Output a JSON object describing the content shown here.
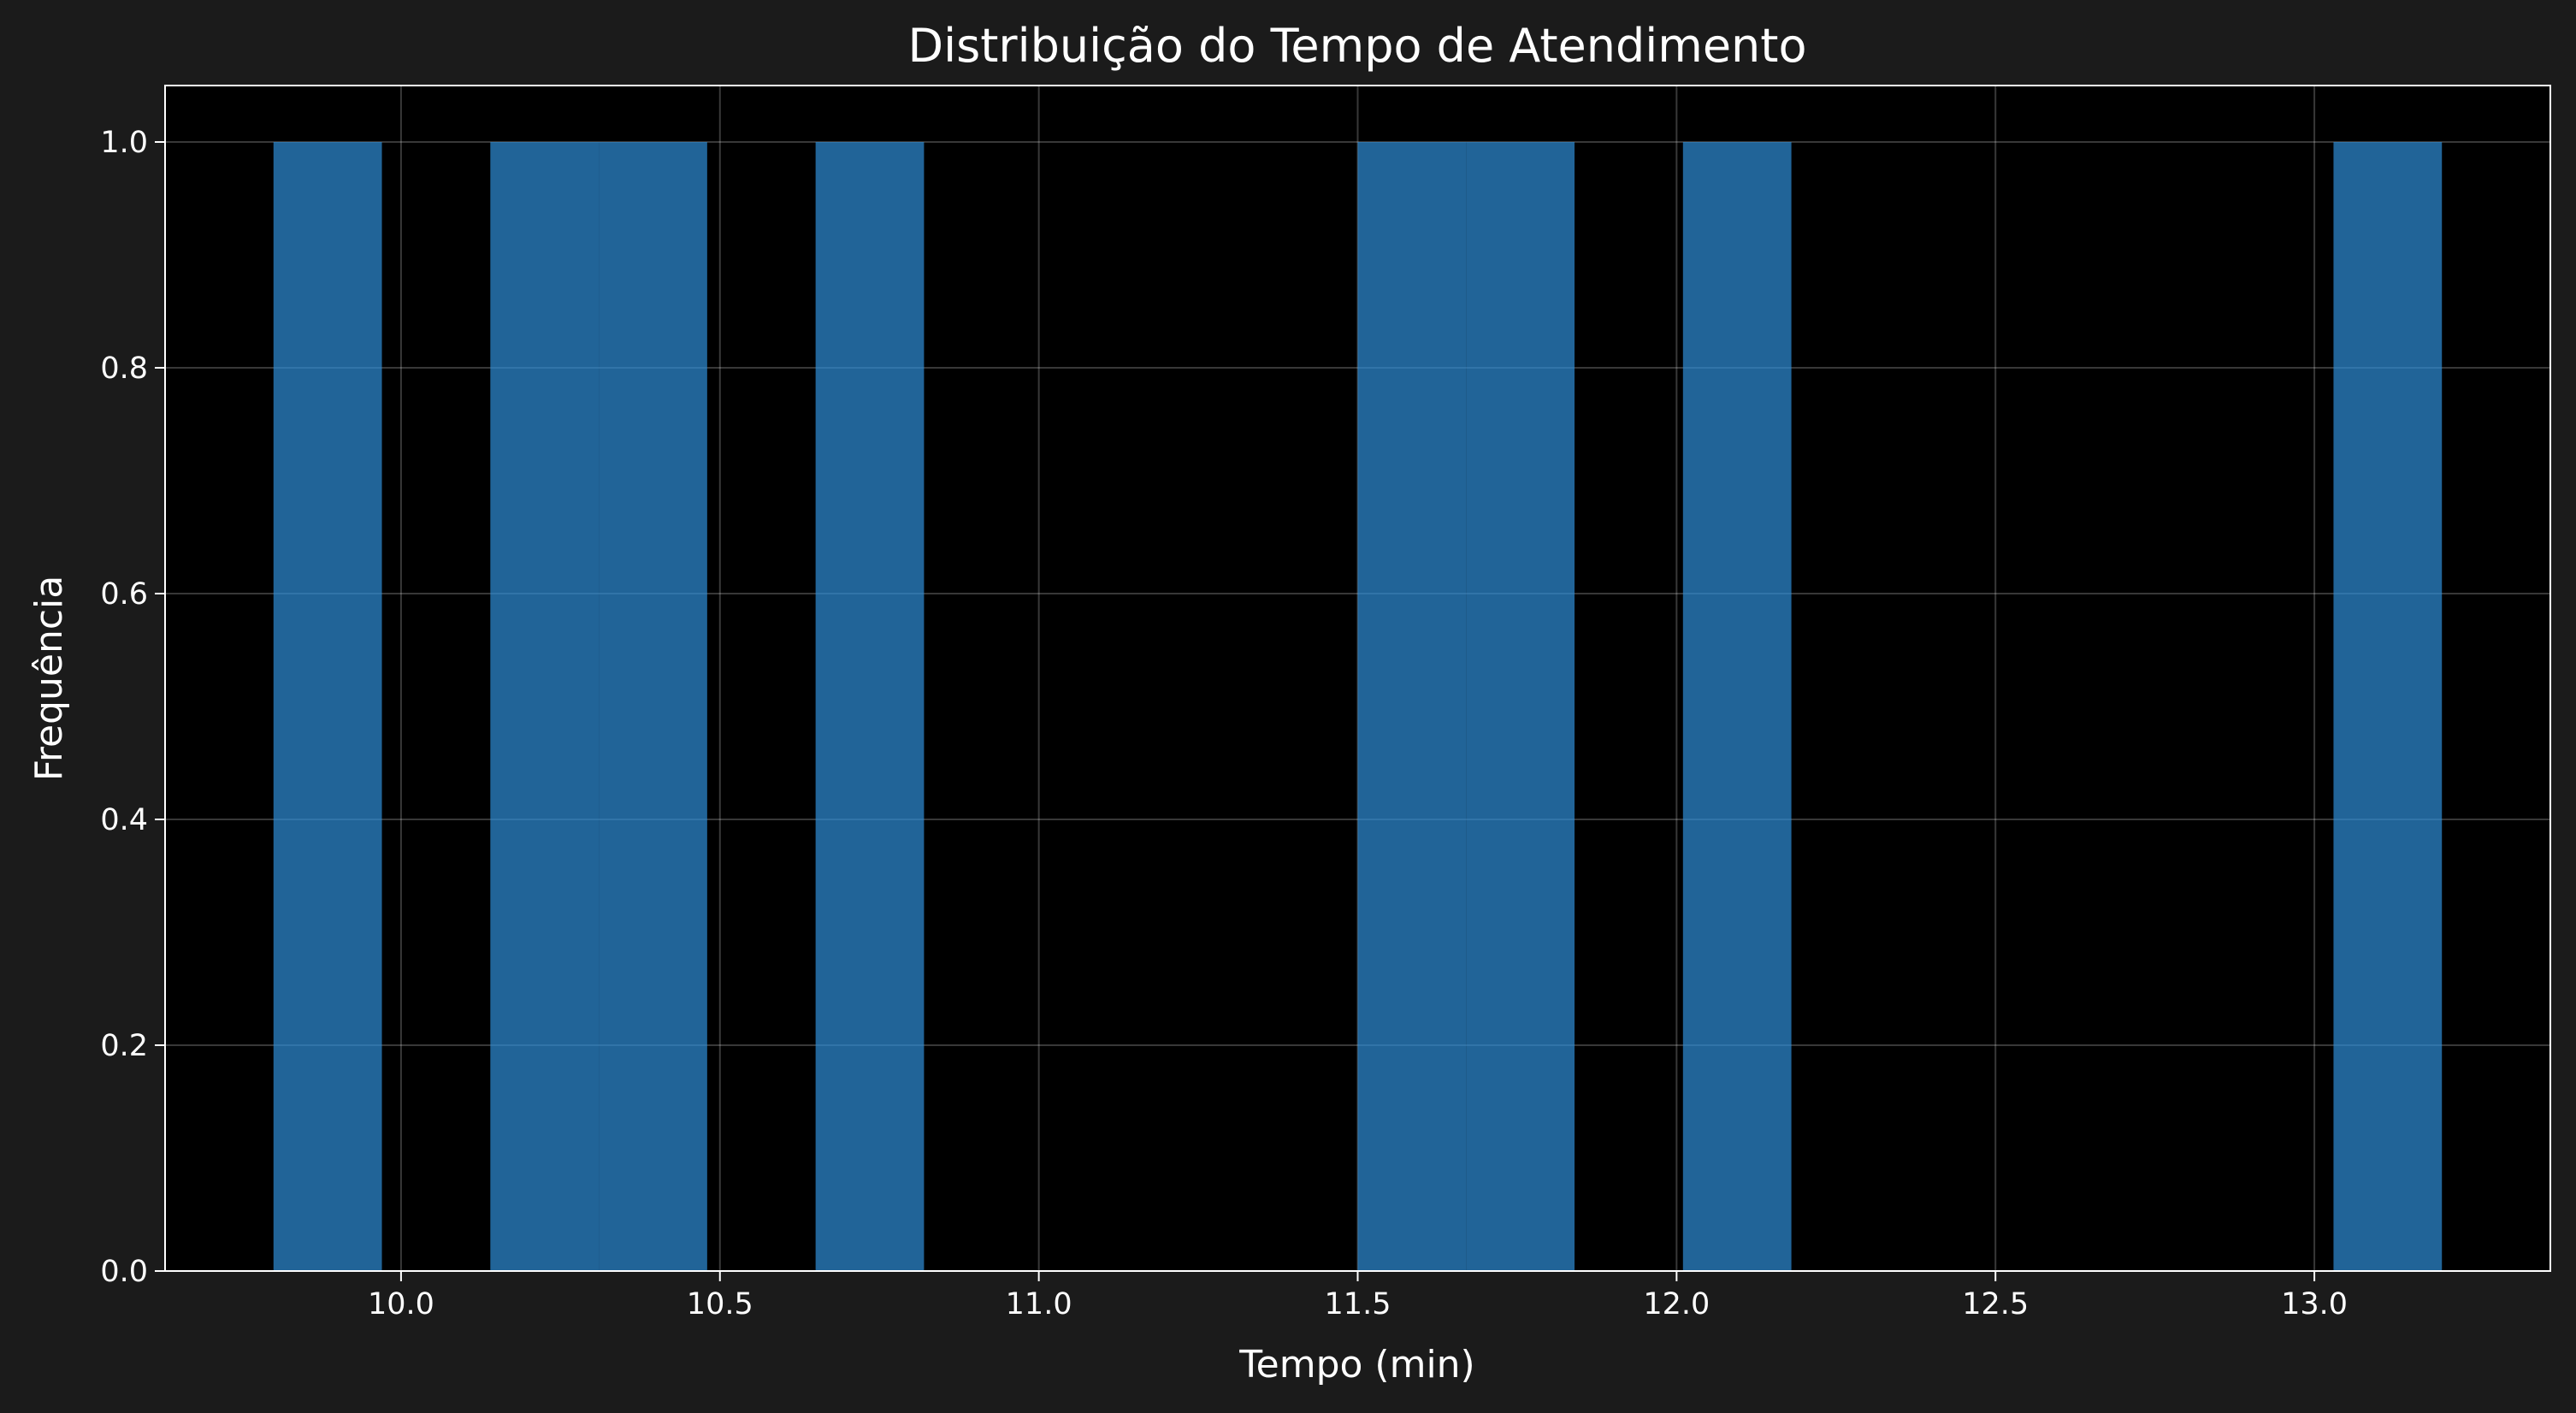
{
  "chart_data": {
    "type": "bar",
    "title": "Distribuição do Tempo de Atendimento",
    "xlabel": "Tempo (min)",
    "ylabel": "Frequência",
    "xlim": [
      9.63,
      13.37
    ],
    "ylim": [
      0.0,
      1.05
    ],
    "grid": true,
    "bar_color": "#2f8fd8",
    "x_ticks": [
      "10.0",
      "10.5",
      "11.0",
      "11.5",
      "12.0",
      "12.5",
      "13.0"
    ],
    "y_ticks": [
      "0.0",
      "0.2",
      "0.4",
      "0.6",
      "0.8",
      "1.0"
    ],
    "bins": [
      {
        "start": 9.8,
        "end": 9.97,
        "count": 1
      },
      {
        "start": 10.14,
        "end": 10.31,
        "count": 1
      },
      {
        "start": 10.31,
        "end": 10.48,
        "count": 1
      },
      {
        "start": 10.65,
        "end": 10.82,
        "count": 1
      },
      {
        "start": 11.5,
        "end": 11.67,
        "count": 1
      },
      {
        "start": 11.67,
        "end": 11.84,
        "count": 1
      },
      {
        "start": 12.01,
        "end": 12.18,
        "count": 1
      },
      {
        "start": 13.03,
        "end": 13.2,
        "count": 1
      }
    ]
  }
}
